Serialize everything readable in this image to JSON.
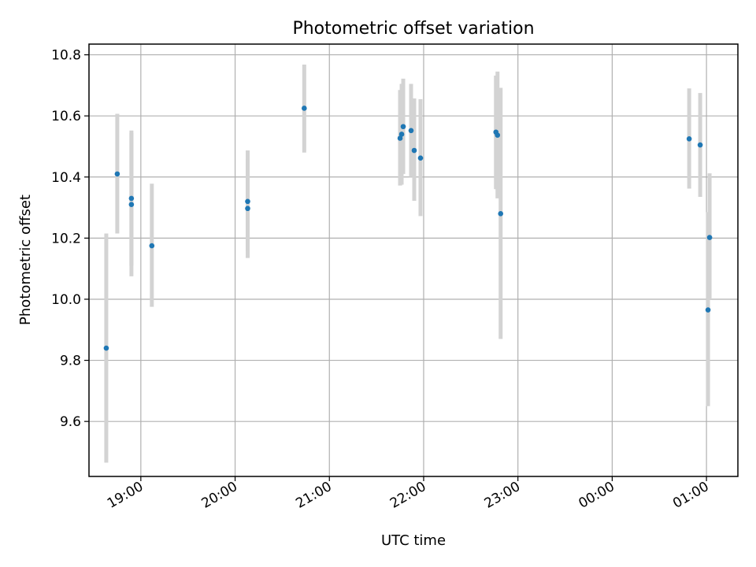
{
  "chart_data": {
    "type": "scatter",
    "title": "Photometric offset variation",
    "xlabel": "UTC time",
    "ylabel": "Photometric offset",
    "x_unit": "UTC time (HH:MM)",
    "xlim": [
      "18:27",
      "01:20"
    ],
    "ylim": [
      9.42,
      10.835
    ],
    "x_ticks": [
      "19:00",
      "20:00",
      "21:00",
      "22:00",
      "23:00",
      "00:00",
      "01:00"
    ],
    "y_ticks": [
      "9.6",
      "9.8",
      "10.0",
      "10.2",
      "10.4",
      "10.6",
      "10.8"
    ],
    "grid": true,
    "marker_color": "#1f77b4",
    "errorbar_color": "#d3d3d3",
    "points": [
      {
        "x": "18:38",
        "y": 9.84,
        "lo": 9.465,
        "hi": 10.215
      },
      {
        "x": "18:45",
        "y": 10.41,
        "lo": 10.215,
        "hi": 10.607
      },
      {
        "x": "18:54",
        "y": 10.33,
        "lo": 10.11,
        "hi": 10.552
      },
      {
        "x": "18:54",
        "y": 10.31,
        "lo": 10.075,
        "hi": 10.545
      },
      {
        "x": "19:07",
        "y": 10.175,
        "lo": 9.975,
        "hi": 10.378
      },
      {
        "x": "20:08",
        "y": 10.32,
        "lo": 10.155,
        "hi": 10.487
      },
      {
        "x": "20:08",
        "y": 10.297,
        "lo": 10.135,
        "hi": 10.46
      },
      {
        "x": "20:44",
        "y": 10.625,
        "lo": 10.48,
        "hi": 10.768
      },
      {
        "x": "21:45",
        "y": 10.527,
        "lo": 10.372,
        "hi": 10.685
      },
      {
        "x": "21:46",
        "y": 10.54,
        "lo": 10.375,
        "hi": 10.705
      },
      {
        "x": "21:47",
        "y": 10.565,
        "lo": 10.41,
        "hi": 10.722
      },
      {
        "x": "21:52",
        "y": 10.552,
        "lo": 10.4,
        "hi": 10.705
      },
      {
        "x": "21:54",
        "y": 10.487,
        "lo": 10.322,
        "hi": 10.657
      },
      {
        "x": "21:58",
        "y": 10.462,
        "lo": 10.272,
        "hi": 10.655
      },
      {
        "x": "22:46",
        "y": 10.547,
        "lo": 10.36,
        "hi": 10.732
      },
      {
        "x": "22:47",
        "y": 10.537,
        "lo": 10.33,
        "hi": 10.745
      },
      {
        "x": "22:49",
        "y": 10.28,
        "lo": 9.87,
        "hi": 10.692
      },
      {
        "x": "00:49",
        "y": 10.525,
        "lo": 10.362,
        "hi": 10.69
      },
      {
        "x": "00:56",
        "y": 10.505,
        "lo": 10.335,
        "hi": 10.675
      },
      {
        "x": "01:01",
        "y": 9.965,
        "lo": 9.65,
        "hi": 10.285
      },
      {
        "x": "01:02",
        "y": 10.202,
        "lo": 10.0,
        "hi": 10.412
      }
    ]
  }
}
